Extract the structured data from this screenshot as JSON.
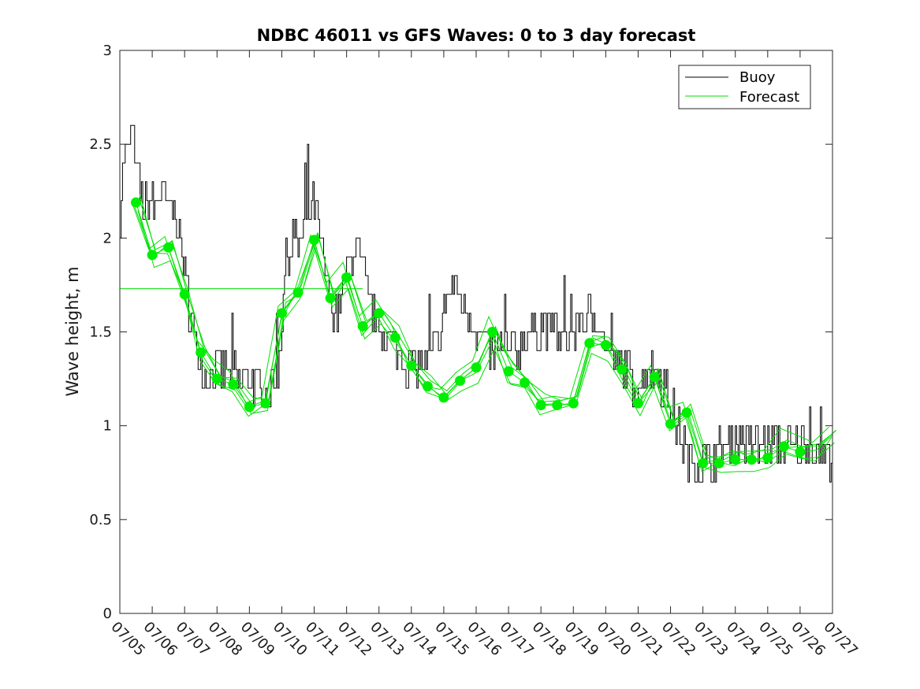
{
  "chart_data": {
    "type": "line",
    "title": "NDBC 46011 vs GFS Waves: 0 to 3 day forecast",
    "xlabel": "",
    "ylabel": "Wave height, m",
    "xlim": [
      0,
      22
    ],
    "ylim": [
      0,
      3
    ],
    "x_tick_labels": [
      "07/05",
      "07/06",
      "07/07",
      "07/08",
      "07/09",
      "07/10",
      "07/11",
      "07/12",
      "07/13",
      "07/14",
      "07/15",
      "07/16",
      "07/17",
      "07/18",
      "07/19",
      "07/20",
      "07/21",
      "07/22",
      "07/23",
      "07/24",
      "07/25",
      "07/26",
      "07/27"
    ],
    "y_ticks": [
      0,
      0.5,
      1,
      1.5,
      2,
      2.5,
      3
    ],
    "y_tick_labels": [
      "0",
      "0.5",
      "1",
      "1.5",
      "2",
      "2.5",
      "3"
    ],
    "grid": false,
    "legend_position": "top-right",
    "legend": [
      {
        "label": "Buoy",
        "color": "#000000"
      },
      {
        "label": "Forecast",
        "color": "#00e000"
      }
    ],
    "colors": {
      "buoy": "#000000",
      "forecast": "#00e000",
      "marker": "#00ee00"
    },
    "buoy_anchor_points": {
      "x": [
        0,
        0.05,
        0.12,
        0.25,
        0.35,
        0.42,
        0.5,
        0.6,
        0.7,
        0.9,
        1.1,
        1.3,
        1.5,
        1.7,
        1.85,
        2.0,
        2.2,
        2.4,
        2.6,
        2.8,
        3.0,
        3.3,
        3.6,
        3.9,
        4.2,
        4.4,
        4.6,
        4.8,
        4.9,
        5.0,
        5.1,
        5.3,
        5.5,
        5.7,
        5.9,
        6.0,
        6.1,
        6.3,
        6.5,
        6.7,
        6.9,
        7.1,
        7.3,
        7.5,
        7.7,
        7.9,
        8.1,
        8.3,
        8.5,
        8.7,
        8.9,
        9.1,
        9.3,
        9.5,
        9.7,
        9.9,
        10.1,
        10.3,
        10.6,
        10.9,
        11.2,
        11.5,
        11.8,
        12.0,
        12.2,
        12.4,
        12.6,
        12.9,
        13.2,
        13.5,
        13.8,
        14.0,
        14.2,
        14.4,
        14.7,
        15.0,
        15.3,
        15.6,
        15.9,
        16.1,
        16.3,
        16.5,
        16.7,
        16.9,
        17.2,
        17.5,
        17.8,
        18.0,
        18.2,
        18.4,
        18.6,
        18.8,
        19.0,
        19.2,
        19.4,
        19.6,
        19.8,
        20.0,
        20.3,
        20.6,
        20.9,
        21.2,
        21.5,
        21.8,
        22.0
      ],
      "y": [
        2.15,
        2.25,
        2.4,
        2.45,
        2.6,
        2.55,
        2.35,
        2.3,
        2.15,
        2.2,
        2.15,
        2.25,
        2.15,
        2.15,
        1.95,
        1.8,
        1.55,
        1.4,
        1.3,
        1.25,
        1.3,
        1.3,
        1.25,
        1.25,
        1.2,
        1.2,
        1.2,
        1.25,
        1.3,
        1.6,
        1.85,
        2.0,
        1.95,
        2.05,
        2.2,
        2.15,
        2.05,
        1.85,
        1.65,
        1.6,
        1.75,
        1.9,
        1.95,
        1.85,
        1.65,
        1.55,
        1.5,
        1.45,
        1.4,
        1.35,
        1.3,
        1.3,
        1.35,
        1.35,
        1.4,
        1.5,
        1.7,
        1.75,
        1.6,
        1.55,
        1.45,
        1.4,
        1.4,
        1.4,
        1.4,
        1.45,
        1.5,
        1.5,
        1.55,
        1.5,
        1.45,
        1.5,
        1.55,
        1.55,
        1.6,
        1.4,
        1.3,
        1.3,
        1.2,
        1.25,
        1.3,
        1.3,
        1.25,
        1.15,
        1.0,
        0.85,
        0.8,
        0.8,
        0.8,
        0.85,
        0.9,
        0.9,
        0.95,
        0.95,
        0.9,
        0.9,
        0.9,
        0.9,
        0.9,
        0.9,
        0.9,
        0.9,
        0.85,
        0.85,
        0.85
      ]
    },
    "forecast_main": {
      "x": [
        0.5,
        1.0,
        1.5,
        2.0,
        2.5,
        3.0,
        3.5,
        4.0,
        4.5,
        5.0,
        5.5,
        6.0,
        6.5,
        7.0,
        7.5,
        8.0,
        8.5,
        9.0,
        9.5,
        10.0,
        10.5,
        11.0,
        11.5,
        12.0,
        12.5,
        13.0,
        13.5,
        14.0,
        14.5,
        15.0,
        15.5,
        16.0,
        16.5,
        17.0,
        17.5,
        18.0,
        18.5,
        19.0,
        19.5,
        20.0,
        20.5,
        21.0,
        21.5,
        22.0
      ],
      "y": [
        2.19,
        1.91,
        1.95,
        1.7,
        1.39,
        1.25,
        1.22,
        1.1,
        1.12,
        1.6,
        1.71,
        1.99,
        1.68,
        1.79,
        1.53,
        1.6,
        1.47,
        1.32,
        1.21,
        1.15,
        1.24,
        1.31,
        1.5,
        1.29,
        1.23,
        1.11,
        1.11,
        1.12,
        1.44,
        1.43,
        1.3,
        1.12,
        1.26,
        1.01,
        1.07,
        0.8,
        0.8,
        0.82,
        0.82,
        0.83,
        0.89,
        0.86,
        0.87,
        0.95
      ]
    },
    "forecast_offsets": [
      0,
      0.04,
      -0.04,
      0.08,
      -0.07,
      0.03
    ],
    "forecast_flat_line": {
      "x": [
        0,
        7.5
      ],
      "y": [
        1.73,
        1.73
      ]
    },
    "forecast_markers": {
      "x": [
        0.5,
        1.0,
        1.5,
        2.0,
        2.5,
        3.0,
        3.5,
        4.0,
        4.5,
        5.0,
        5.5,
        6.0,
        6.5,
        7.0,
        7.5,
        8.0,
        8.5,
        9.0,
        9.5,
        10.0,
        10.5,
        11.0,
        11.5,
        12.0,
        12.5,
        13.0,
        13.5,
        14.0,
        14.5,
        15.0,
        15.5,
        16.0,
        16.5,
        17.0,
        17.5,
        18.0,
        18.5,
        19.0,
        19.5,
        20.0,
        20.5,
        21.0
      ],
      "y": [
        2.19,
        1.91,
        1.95,
        1.7,
        1.39,
        1.25,
        1.22,
        1.1,
        1.12,
        1.6,
        1.71,
        1.99,
        1.68,
        1.79,
        1.53,
        1.6,
        1.47,
        1.32,
        1.21,
        1.15,
        1.24,
        1.31,
        1.5,
        1.29,
        1.23,
        1.11,
        1.11,
        1.12,
        1.44,
        1.43,
        1.3,
        1.12,
        1.26,
        1.01,
        1.07,
        0.8,
        0.8,
        0.82,
        0.82,
        0.83,
        0.89,
        0.86
      ]
    }
  }
}
